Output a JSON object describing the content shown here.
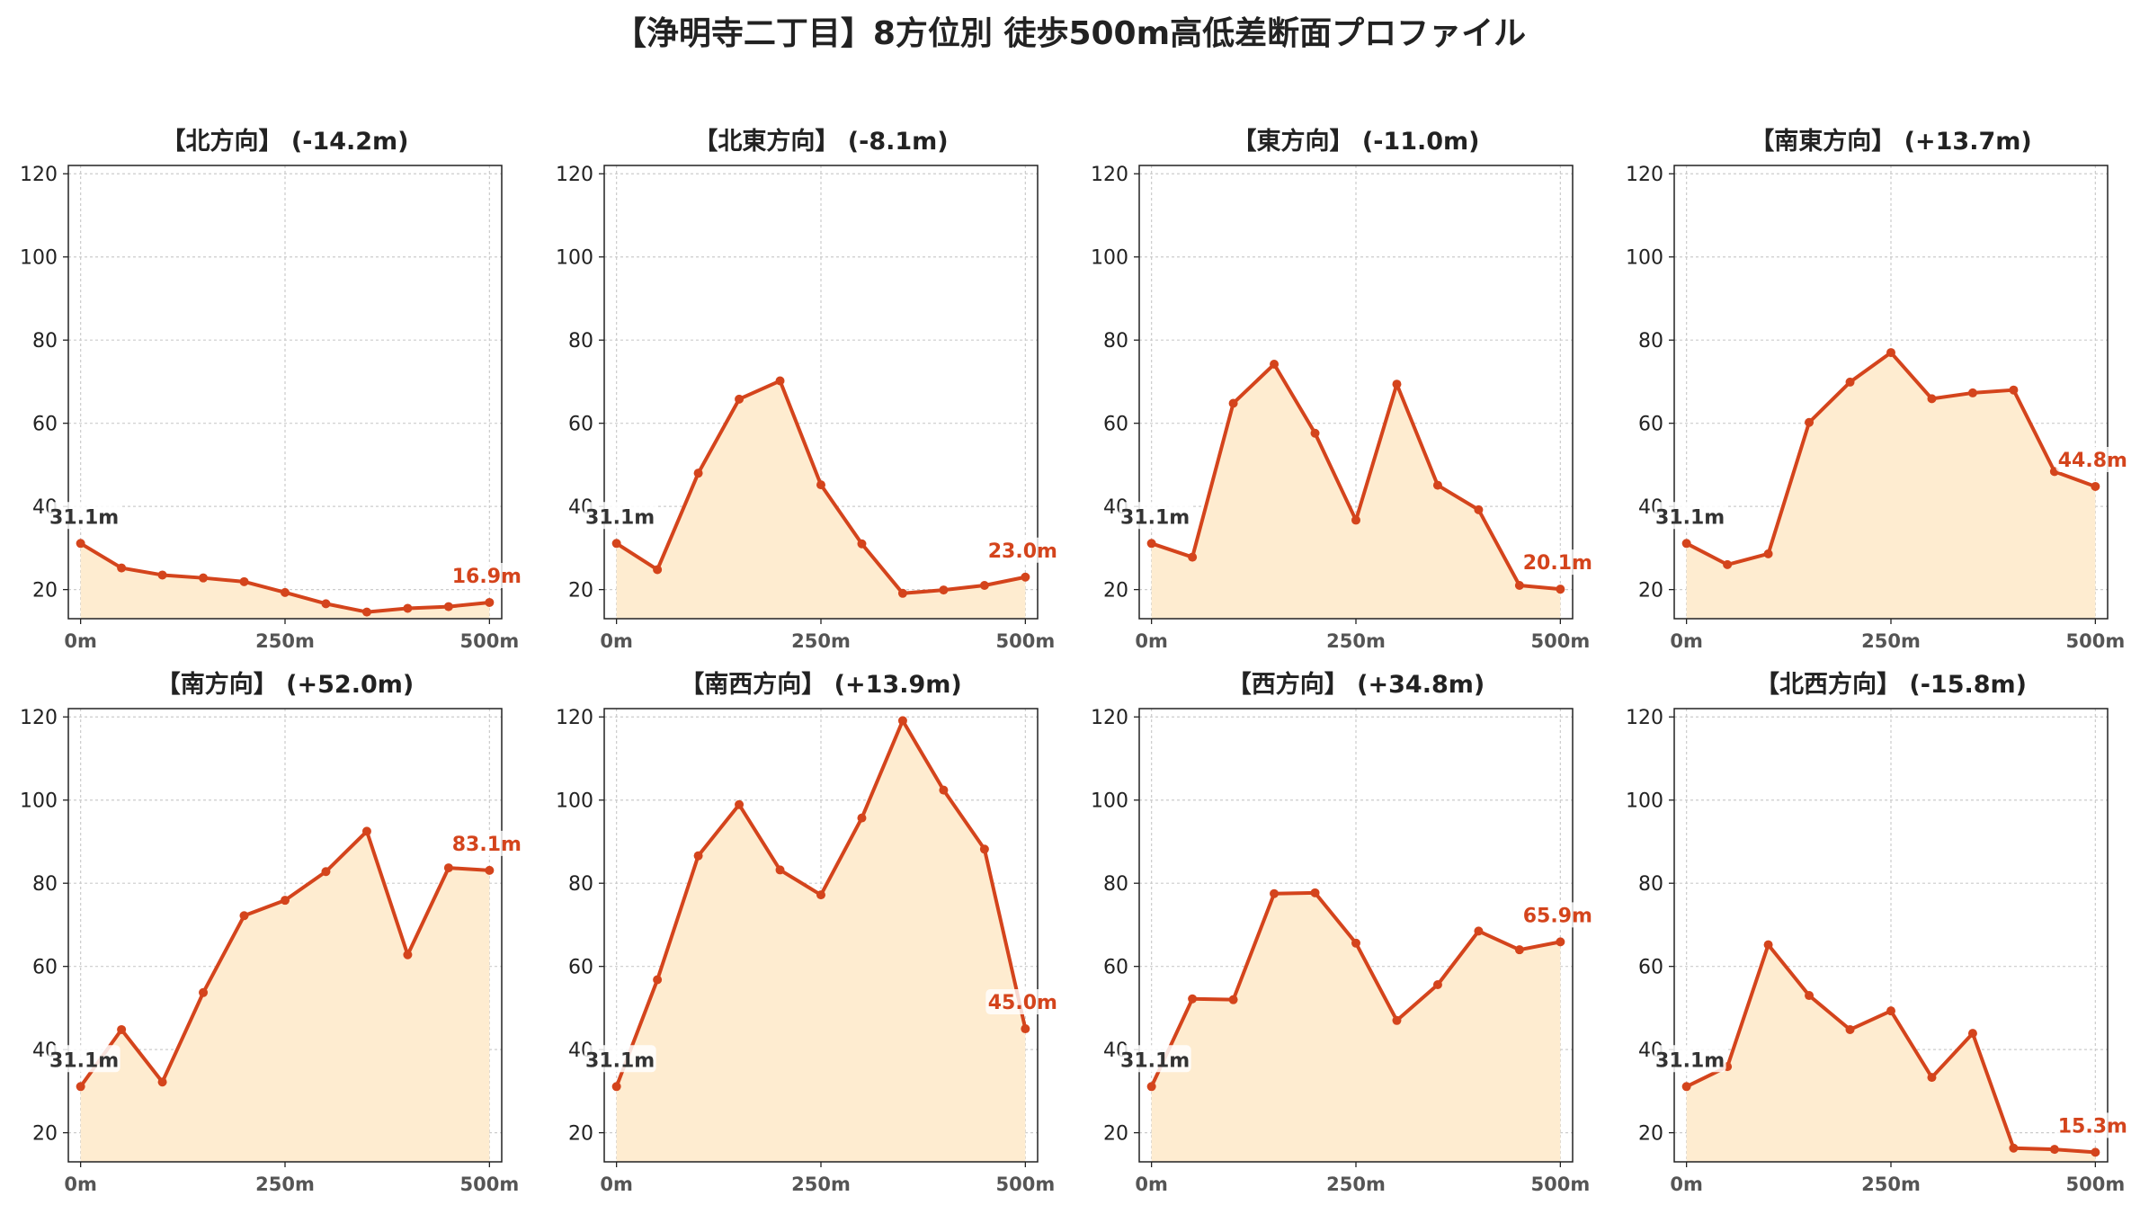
{
  "suptitle": "【浄明寺二丁目】8方位別 徒歩500m高低差断面プロファイル",
  "colors": {
    "line": "#d4441c",
    "fill": "#feecd0",
    "start_label": "#333333",
    "end_label": "#d4441c",
    "grid": "#cccccc"
  },
  "chart_data": [
    {
      "type": "area",
      "title": "【北方向】 (-14.2m)",
      "x": [
        0,
        50,
        100,
        150,
        200,
        250,
        300,
        350,
        400,
        450,
        500
      ],
      "values": [
        31.1,
        25.2,
        23.5,
        22.8,
        21.9,
        19.3,
        16.6,
        14.6,
        15.5,
        15.9,
        16.9
      ],
      "start_label": "31.1m",
      "end_label": "16.9m",
      "xticks": [
        "0m",
        "250m",
        "500m"
      ],
      "yticks": [
        20,
        40,
        60,
        80,
        100,
        120
      ],
      "xlim": [
        -15,
        515
      ],
      "ylim": [
        13,
        122
      ],
      "grid": true
    },
    {
      "type": "area",
      "title": "【北東方向】 (-8.1m)",
      "x": [
        0,
        50,
        100,
        150,
        200,
        250,
        300,
        350,
        400,
        450,
        500
      ],
      "values": [
        31.1,
        24.8,
        48.0,
        65.8,
        70.2,
        45.2,
        31.0,
        19.1,
        19.9,
        21.0,
        23.0
      ],
      "start_label": "31.1m",
      "end_label": "23.0m",
      "xticks": [
        "0m",
        "250m",
        "500m"
      ],
      "yticks": [
        20,
        40,
        60,
        80,
        100,
        120
      ],
      "xlim": [
        -15,
        515
      ],
      "ylim": [
        13,
        122
      ],
      "grid": true
    },
    {
      "type": "area",
      "title": "【東方向】 (-11.0m)",
      "x": [
        0,
        50,
        100,
        150,
        200,
        250,
        300,
        350,
        400,
        450,
        500
      ],
      "values": [
        31.1,
        27.8,
        64.8,
        74.2,
        57.6,
        36.7,
        69.4,
        45.1,
        39.2,
        21.0,
        20.1
      ],
      "start_label": "31.1m",
      "end_label": "20.1m",
      "xticks": [
        "0m",
        "250m",
        "500m"
      ],
      "yticks": [
        20,
        40,
        60,
        80,
        100,
        120
      ],
      "xlim": [
        -15,
        515
      ],
      "ylim": [
        13,
        122
      ],
      "grid": true
    },
    {
      "type": "area",
      "title": "【南東方向】 (+13.7m)",
      "x": [
        0,
        50,
        100,
        150,
        200,
        250,
        300,
        350,
        400,
        450,
        500
      ],
      "values": [
        31.1,
        26.0,
        28.6,
        60.2,
        69.9,
        77.0,
        65.9,
        67.3,
        68.0,
        48.4,
        44.8
      ],
      "start_label": "31.1m",
      "end_label": "44.8m",
      "xticks": [
        "0m",
        "250m",
        "500m"
      ],
      "yticks": [
        20,
        40,
        60,
        80,
        100,
        120
      ],
      "xlim": [
        -15,
        515
      ],
      "ylim": [
        13,
        122
      ],
      "grid": true
    },
    {
      "type": "area",
      "title": "【南方向】 (+52.0m)",
      "x": [
        0,
        50,
        100,
        150,
        200,
        250,
        300,
        350,
        400,
        450,
        500
      ],
      "values": [
        31.1,
        44.8,
        32.2,
        53.7,
        72.2,
        75.9,
        82.8,
        92.5,
        62.8,
        83.7,
        83.1
      ],
      "start_label": "31.1m",
      "end_label": "83.1m",
      "xticks": [
        "0m",
        "250m",
        "500m"
      ],
      "yticks": [
        20,
        40,
        60,
        80,
        100,
        120
      ],
      "xlim": [
        -15,
        515
      ],
      "ylim": [
        13,
        122
      ],
      "grid": true
    },
    {
      "type": "area",
      "title": "【南西方向】 (+13.9m)",
      "x": [
        0,
        50,
        100,
        150,
        200,
        250,
        300,
        350,
        400,
        450,
        500
      ],
      "values": [
        31.1,
        56.8,
        86.6,
        98.9,
        83.2,
        77.2,
        95.7,
        119.1,
        102.4,
        88.2,
        45.0
      ],
      "start_label": "31.1m",
      "end_label": "45.0m",
      "xticks": [
        "0m",
        "250m",
        "500m"
      ],
      "yticks": [
        20,
        40,
        60,
        80,
        100,
        120
      ],
      "xlim": [
        -15,
        515
      ],
      "ylim": [
        13,
        122
      ],
      "grid": true
    },
    {
      "type": "area",
      "title": "【西方向】 (+34.8m)",
      "x": [
        0,
        50,
        100,
        150,
        200,
        250,
        300,
        350,
        400,
        450,
        500
      ],
      "values": [
        31.1,
        52.2,
        52.0,
        77.5,
        77.7,
        65.6,
        47.0,
        55.6,
        68.5,
        64.0,
        65.9
      ],
      "start_label": "31.1m",
      "end_label": "65.9m",
      "xticks": [
        "0m",
        "250m",
        "500m"
      ],
      "yticks": [
        20,
        40,
        60,
        80,
        100,
        120
      ],
      "xlim": [
        -15,
        515
      ],
      "ylim": [
        13,
        122
      ],
      "grid": true
    },
    {
      "type": "area",
      "title": "【北西方向】 (-15.8m)",
      "x": [
        0,
        50,
        100,
        150,
        200,
        250,
        300,
        350,
        400,
        450,
        500
      ],
      "values": [
        31.1,
        35.9,
        65.2,
        53.0,
        44.8,
        49.3,
        33.3,
        43.9,
        16.3,
        16.0,
        15.3
      ],
      "start_label": "31.1m",
      "end_label": "15.3m",
      "xticks": [
        "0m",
        "250m",
        "500m"
      ],
      "yticks": [
        20,
        40,
        60,
        80,
        100,
        120
      ],
      "xlim": [
        -15,
        515
      ],
      "ylim": [
        13,
        122
      ],
      "grid": true
    }
  ]
}
